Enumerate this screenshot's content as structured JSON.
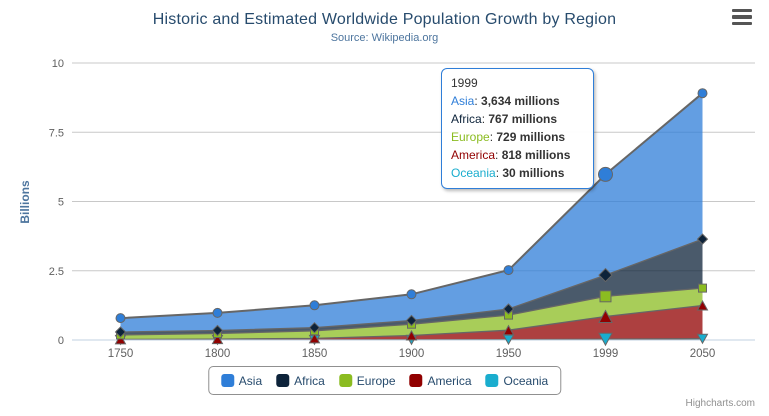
{
  "chart": {
    "title": "Historic and Estimated Worldwide Population Growth by Region",
    "subtitle": "Source: Wikipedia.org",
    "y_axis_title": "Billions",
    "credits": "Highcharts.com",
    "export_icon": "hamburger-menu-icon",
    "colors": {
      "title_text": "#274b6d",
      "subtitle_text": "#4d759e",
      "axis_label": "#606060",
      "axis_title_text": "#4d759e",
      "legend_text": "#274b6d",
      "gridline": "#c8c8c8",
      "axis_line": "#c0d0e0",
      "series_outline": "#666666",
      "tooltip_border": "#2f7ed8"
    }
  },
  "chart_data": {
    "type": "area",
    "stacking": "normal",
    "title": "Historic and Estimated Worldwide Population Growth by Region",
    "subtitle": "Source: Wikipedia.org",
    "xlabel": "",
    "ylabel": "Billions",
    "unit": "millions",
    "categories": [
      "1750",
      "1800",
      "1850",
      "1900",
      "1950",
      "1999",
      "2050"
    ],
    "series": [
      {
        "name": "Asia",
        "color": "#2f7ed8",
        "marker": "circle",
        "values": [
          502,
          635,
          809,
          947,
          1402,
          3634,
          5268
        ]
      },
      {
        "name": "Africa",
        "color": "#0d233a",
        "marker": "diamond",
        "values": [
          106,
          107,
          111,
          133,
          221,
          767,
          1766
        ]
      },
      {
        "name": "Europe",
        "color": "#8bbc21",
        "marker": "square",
        "values": [
          163,
          203,
          276,
          408,
          547,
          729,
          628
        ]
      },
      {
        "name": "America",
        "color": "#910000",
        "marker": "triangle",
        "values": [
          18,
          31,
          54,
          156,
          339,
          818,
          1201
        ]
      },
      {
        "name": "Oceania",
        "color": "#1aadce",
        "marker": "triangle-down",
        "values": [
          2,
          2,
          2,
          6,
          13,
          30,
          46
        ]
      }
    ],
    "ylim": [
      0,
      10
    ],
    "yticks": [
      0,
      2.5,
      5,
      7.5,
      10
    ],
    "ytick_labels": [
      "0",
      "2.5",
      "5",
      "7.5",
      "10"
    ],
    "grid": true,
    "fill_opacity": 0.75,
    "legend_position": "bottom",
    "hover_index": 5
  },
  "tooltip": {
    "header": "1999",
    "rows": [
      {
        "name": "Asia",
        "color": "#2f7ed8",
        "value": "3,634 millions"
      },
      {
        "name": "Africa",
        "color": "#0d233a",
        "value": "767 millions"
      },
      {
        "name": "Europe",
        "color": "#8bbc21",
        "value": "729 millions"
      },
      {
        "name": "America",
        "color": "#910000",
        "value": "818 millions"
      },
      {
        "name": "Oceania",
        "color": "#1aadce",
        "value": "30 millions"
      }
    ]
  }
}
